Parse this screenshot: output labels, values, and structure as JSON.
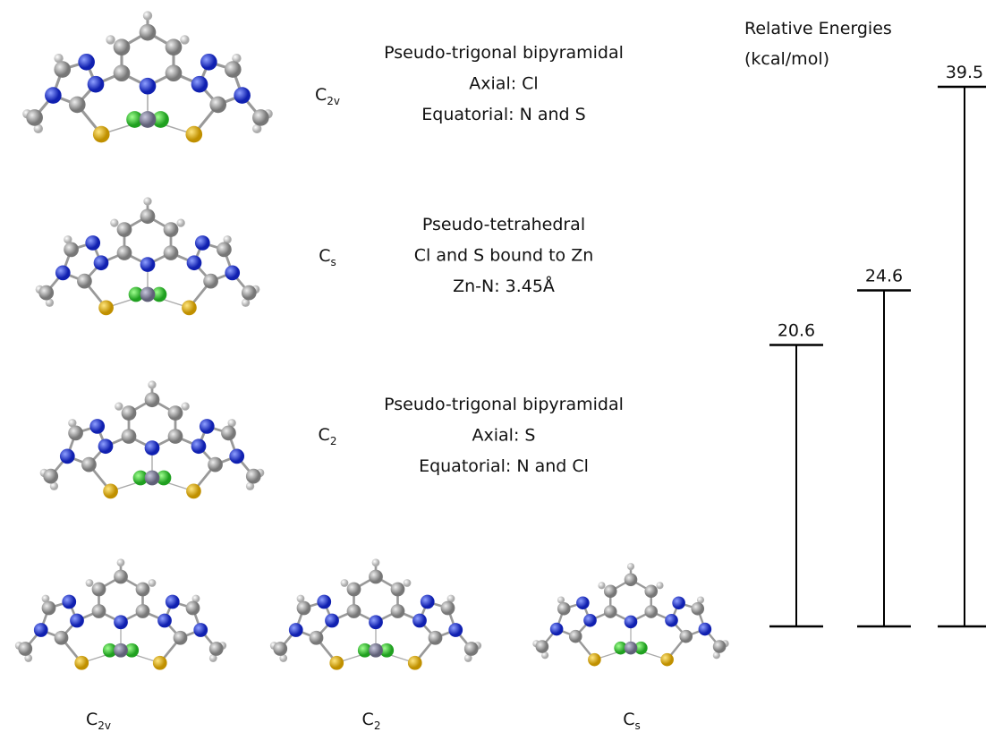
{
  "rows": [
    {
      "symmetry": {
        "letter": "C",
        "sub": "2v"
      },
      "description": [
        "Pseudo-trigonal bipyramidal",
        "Axial: Cl",
        "Equatorial: N and S"
      ]
    },
    {
      "symmetry": {
        "letter": "C",
        "sub": "s"
      },
      "description": [
        "Pseudo-tetrahedral",
        "Cl  and S bound to Zn",
        "Zn-N: 3.45Å"
      ]
    },
    {
      "symmetry": {
        "letter": "C",
        "sub": "2"
      },
      "description": [
        "Pseudo-trigonal bipyramidal",
        "Axial: S",
        "Equatorial: N and Cl"
      ]
    }
  ],
  "bottom": [
    {
      "letter": "C",
      "sub": "2v"
    },
    {
      "letter": "C",
      "sub": "2"
    },
    {
      "letter": "C",
      "sub": "s"
    }
  ],
  "energies": {
    "title": "Relative Energies",
    "unit": "(kcal/mol)",
    "levels": [
      20.6,
      24.6,
      39.5
    ]
  }
}
